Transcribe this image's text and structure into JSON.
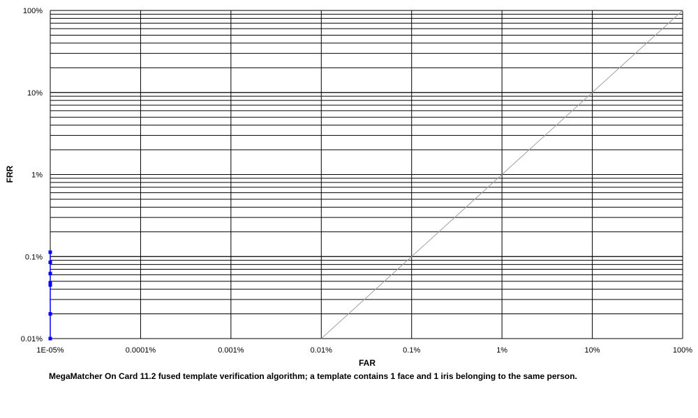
{
  "chart_data": {
    "type": "line",
    "xlabel": "FAR",
    "ylabel": "FRR",
    "x_scale": "log",
    "y_scale": "log",
    "xlim": [
      1e-05,
      100
    ],
    "ylim": [
      0.01,
      100
    ],
    "x_ticks": [
      "1E-05%",
      "0.0001%",
      "0.001%",
      "0.01%",
      "0.1%",
      "1%",
      "10%",
      "100%"
    ],
    "y_ticks": [
      "0.01%",
      "0.1%",
      "1%",
      "10%",
      "100%"
    ],
    "grid": true,
    "reference_line": {
      "x": [
        0.01,
        100
      ],
      "y": [
        0.01,
        100
      ],
      "color": "#a0a0a0"
    },
    "series": [
      {
        "color": "#0000ff",
        "points": [
          {
            "x": 1e-05,
            "y": 0.01
          },
          {
            "x": 1e-05,
            "y": 0.02
          },
          {
            "x": 1e-05,
            "y": 0.045
          },
          {
            "x": 1e-05,
            "y": 0.048
          },
          {
            "x": 1e-05,
            "y": 0.062
          },
          {
            "x": 1e-05,
            "y": 0.085
          },
          {
            "x": 1e-05,
            "y": 0.113
          }
        ]
      }
    ],
    "caption": "MegaMatcher On Card 11.2 fused template verification algorithm; a template contains 1 face and 1 iris belonging to the same person."
  }
}
